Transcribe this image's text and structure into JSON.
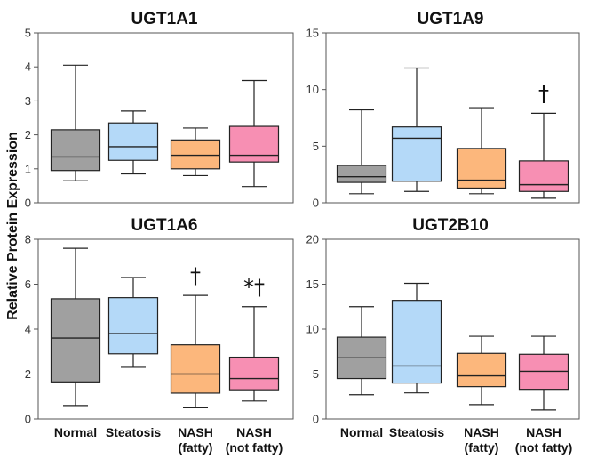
{
  "ylabel": "Relative Protein Expression",
  "colors": {
    "Normal": "#a0a0a0",
    "Steatosis": "#b4d9f8",
    "NASH (fatty)": "#fcb77c",
    "NASH (not fatty)": "#f78fb3"
  },
  "chart_data": [
    {
      "type": "box",
      "title": "UGT1A1",
      "ylim": [
        0,
        5
      ],
      "yticks": [
        "0",
        "1",
        "2",
        "3",
        "4",
        "5"
      ],
      "categories": [
        "Normal",
        "Steatosis",
        "NASH (fatty)",
        "NASH (not fatty)"
      ],
      "boxes": [
        {
          "whisker_low": 0.65,
          "q1": 0.95,
          "median": 1.35,
          "q3": 2.15,
          "whisker_high": 4.05,
          "annotation": ""
        },
        {
          "whisker_low": 0.85,
          "q1": 1.25,
          "median": 1.65,
          "q3": 2.35,
          "whisker_high": 2.7,
          "annotation": ""
        },
        {
          "whisker_low": 0.8,
          "q1": 1.0,
          "median": 1.4,
          "q3": 1.85,
          "whisker_high": 2.2,
          "annotation": ""
        },
        {
          "whisker_low": 0.48,
          "q1": 1.2,
          "median": 1.4,
          "q3": 2.25,
          "whisker_high": 3.6,
          "annotation": ""
        }
      ]
    },
    {
      "type": "box",
      "title": "UGT1A9",
      "ylim": [
        0,
        15
      ],
      "yticks": [
        "0",
        "5",
        "10",
        "15"
      ],
      "categories": [
        "Normal",
        "Steatosis",
        "NASH (fatty)",
        "NASH (not fatty)"
      ],
      "boxes": [
        {
          "whisker_low": 0.8,
          "q1": 1.8,
          "median": 2.3,
          "q3": 3.3,
          "whisker_high": 8.2,
          "annotation": ""
        },
        {
          "whisker_low": 1.0,
          "q1": 1.9,
          "median": 5.7,
          "q3": 6.7,
          "whisker_high": 11.9,
          "annotation": ""
        },
        {
          "whisker_low": 0.8,
          "q1": 1.3,
          "median": 2.0,
          "q3": 4.8,
          "whisker_high": 8.4,
          "annotation": ""
        },
        {
          "whisker_low": 0.4,
          "q1": 1.0,
          "median": 1.6,
          "q3": 3.7,
          "whisker_high": 7.9,
          "annotation": "†"
        }
      ]
    },
    {
      "type": "box",
      "title": "UGT1A6",
      "ylim": [
        0,
        8
      ],
      "yticks": [
        "0",
        "2",
        "4",
        "6",
        "8"
      ],
      "categories": [
        "Normal",
        "Steatosis",
        "NASH (fatty)",
        "NASH (not fatty)"
      ],
      "boxes": [
        {
          "whisker_low": 0.6,
          "q1": 1.65,
          "median": 3.6,
          "q3": 5.35,
          "whisker_high": 7.6,
          "annotation": ""
        },
        {
          "whisker_low": 2.3,
          "q1": 2.9,
          "median": 3.8,
          "q3": 5.4,
          "whisker_high": 6.3,
          "annotation": ""
        },
        {
          "whisker_low": 0.5,
          "q1": 1.15,
          "median": 2.0,
          "q3": 3.3,
          "whisker_high": 5.5,
          "annotation": "†"
        },
        {
          "whisker_low": 0.8,
          "q1": 1.3,
          "median": 1.8,
          "q3": 2.75,
          "whisker_high": 5.0,
          "annotation": "*†"
        }
      ]
    },
    {
      "type": "box",
      "title": "UGT2B10",
      "ylim": [
        0,
        20
      ],
      "yticks": [
        "0",
        "5",
        "10",
        "15",
        "20"
      ],
      "categories": [
        "Normal",
        "Steatosis",
        "NASH (fatty)",
        "NASH (not fatty)"
      ],
      "boxes": [
        {
          "whisker_low": 2.7,
          "q1": 4.5,
          "median": 6.8,
          "q3": 9.1,
          "whisker_high": 12.5,
          "annotation": ""
        },
        {
          "whisker_low": 2.9,
          "q1": 4.0,
          "median": 5.9,
          "q3": 13.2,
          "whisker_high": 15.1,
          "annotation": ""
        },
        {
          "whisker_low": 1.6,
          "q1": 3.6,
          "median": 4.8,
          "q3": 7.3,
          "whisker_high": 9.2,
          "annotation": ""
        },
        {
          "whisker_low": 1.0,
          "q1": 3.3,
          "median": 5.3,
          "q3": 7.2,
          "whisker_high": 9.2,
          "annotation": ""
        }
      ]
    }
  ],
  "x_labels": {
    "left": [
      [
        "Normal"
      ],
      [
        "Steatosis"
      ],
      [
        "NASH",
        "(fatty)"
      ],
      [
        "NASH",
        "(not fatty)"
      ]
    ],
    "right": [
      [
        "Normal"
      ],
      [
        "Steatosis"
      ],
      [
        "NASH",
        "(fatty)"
      ],
      [
        "NASH",
        "(not fatty)"
      ]
    ]
  }
}
